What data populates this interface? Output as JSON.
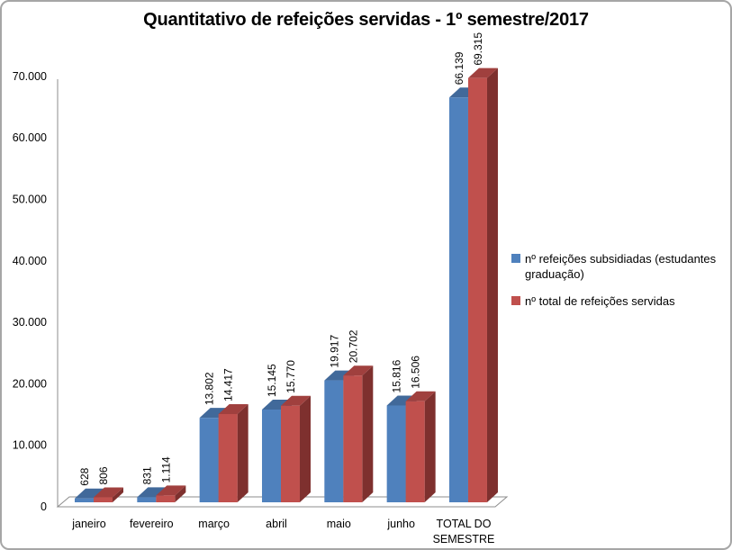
{
  "window": {
    "background": "#FFFFFF",
    "border_color": "#A6A6A6"
  },
  "chart_data": {
    "type": "bar",
    "variant": "3d-clustered-column",
    "title": "Quantitativo de refeições servidas - 1º semestre/2017",
    "categories": [
      "janeiro",
      "fevereiro",
      "março",
      "abril",
      "maio",
      "junho",
      "TOTAL DO SEMESTRE"
    ],
    "series": [
      {
        "name": "nº refeições subsidiadas (estudantes graduação)",
        "values": [
          628,
          831,
          13802,
          15145,
          19917,
          15816,
          66139
        ],
        "data_labels": [
          "628",
          "831",
          "13.802",
          "15.145",
          "19.917",
          "15.816",
          "66.139"
        ],
        "color": "#4F81BD",
        "color_top": "#41699A",
        "color_side": "#35567E"
      },
      {
        "name": "nº total de refeições servidas",
        "values": [
          806,
          1114,
          14417,
          15770,
          20702,
          16506,
          69315
        ],
        "data_labels": [
          "806",
          "1.114",
          "14.417",
          "15.770",
          "20.702",
          "16.506",
          "69.315"
        ],
        "color": "#C0504D",
        "color_top": "#A0403E",
        "color_side": "#7E302E"
      }
    ],
    "y_axis": {
      "min": 0,
      "max": 70000,
      "step": 10000,
      "tick_labels": [
        "0",
        "10.000",
        "20.000",
        "30.000",
        "40.000",
        "50.000",
        "60.000",
        "70.000"
      ]
    },
    "legend_position": "right",
    "gridlines": false,
    "axis_color": "#8C8C8C",
    "text_color": "#000000"
  }
}
